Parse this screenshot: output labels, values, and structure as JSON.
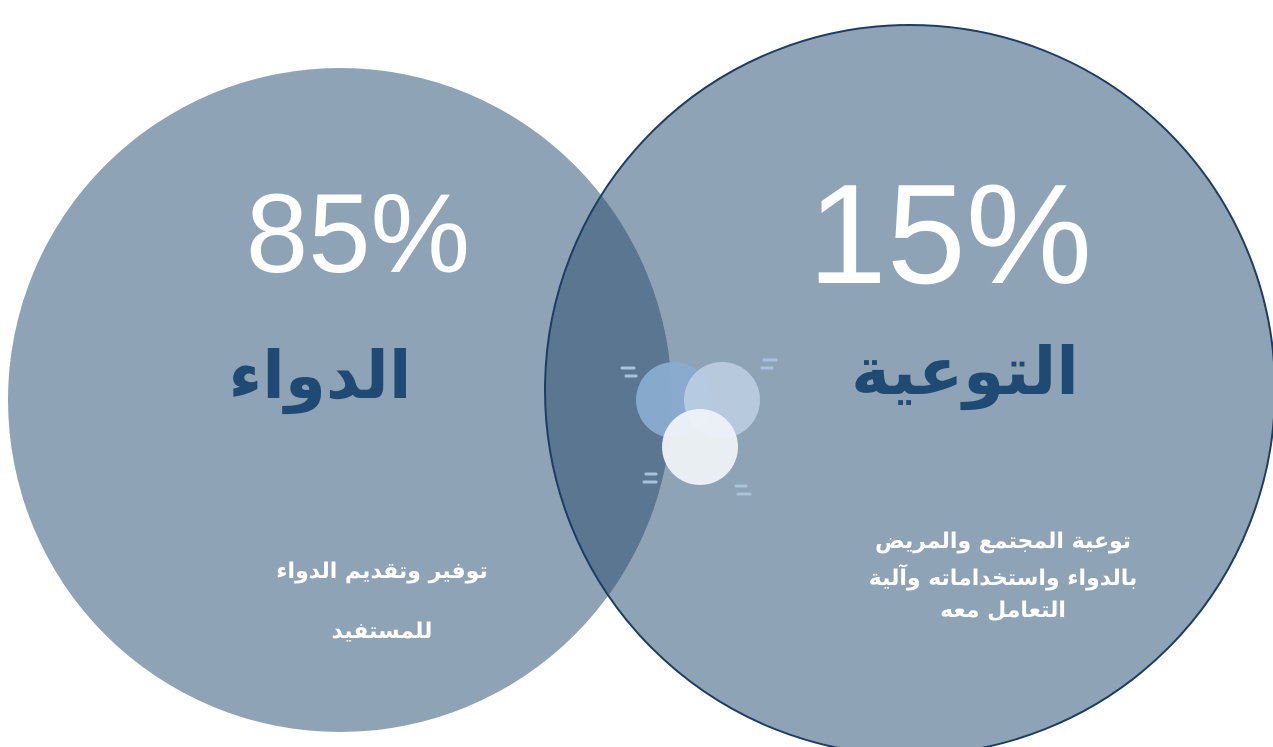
{
  "left": {
    "percent": "85%",
    "title": "الدواء",
    "description": [
      "توفير وتقديم الدواء",
      "للمستفيد"
    ]
  },
  "right": {
    "percent": "15%",
    "title": "التوعية",
    "description": [
      "توعية المجتمع والمريض",
      "بالدواء واستخداماته وآلية",
      "التعامل معه"
    ]
  }
}
